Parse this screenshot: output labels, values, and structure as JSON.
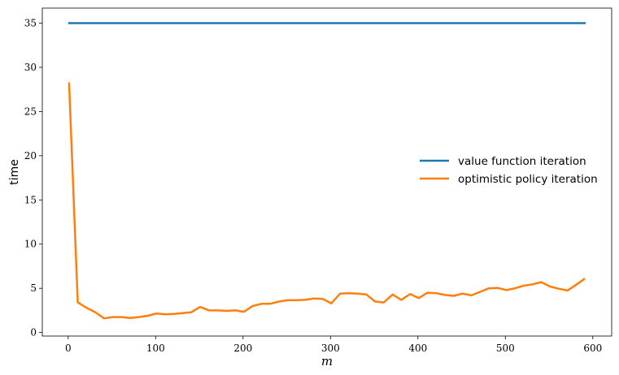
{
  "chart_data": {
    "type": "line",
    "title": "",
    "xlabel": "m",
    "ylabel": "time",
    "xlim": [
      -29.6,
      621.6
    ],
    "ylim": [
      -0.4,
      36.7
    ],
    "xticks": [
      0,
      100,
      200,
      300,
      400,
      500,
      600
    ],
    "yticks": [
      0,
      5,
      10,
      15,
      20,
      25,
      30,
      35
    ],
    "grid": false,
    "legend_position": "center-right",
    "series": [
      {
        "name": "value function iteration",
        "color": "#1f77b4",
        "x": [
          0,
          592
        ],
        "y": [
          35.0,
          35.0
        ]
      },
      {
        "name": "optimistic policy iteration",
        "color": "#ff7f0e",
        "x": [
          1,
          11,
          21,
          31,
          41,
          51,
          61,
          71,
          81,
          91,
          101,
          111,
          121,
          131,
          141,
          151,
          161,
          171,
          181,
          191,
          201,
          211,
          221,
          231,
          241,
          251,
          261,
          271,
          281,
          291,
          301,
          311,
          321,
          331,
          341,
          351,
          361,
          371,
          381,
          391,
          401,
          411,
          421,
          431,
          441,
          451,
          461,
          471,
          481,
          491,
          501,
          511,
          521,
          531,
          541,
          551,
          561,
          571,
          581,
          591
        ],
        "y": [
          28.3,
          3.4,
          2.8,
          2.3,
          1.6,
          1.75,
          1.75,
          1.65,
          1.75,
          1.9,
          2.15,
          2.05,
          2.1,
          2.2,
          2.3,
          2.9,
          2.5,
          2.5,
          2.45,
          2.5,
          2.35,
          3.0,
          3.25,
          3.25,
          3.5,
          3.65,
          3.65,
          3.7,
          3.85,
          3.8,
          3.3,
          4.4,
          4.45,
          4.4,
          4.3,
          3.5,
          3.4,
          4.3,
          3.7,
          4.35,
          3.9,
          4.5,
          4.45,
          4.25,
          4.15,
          4.4,
          4.2,
          4.6,
          5.0,
          5.05,
          4.8,
          5.0,
          5.3,
          5.45,
          5.7,
          5.2,
          4.95,
          4.75,
          5.4,
          6.1
        ]
      }
    ]
  }
}
